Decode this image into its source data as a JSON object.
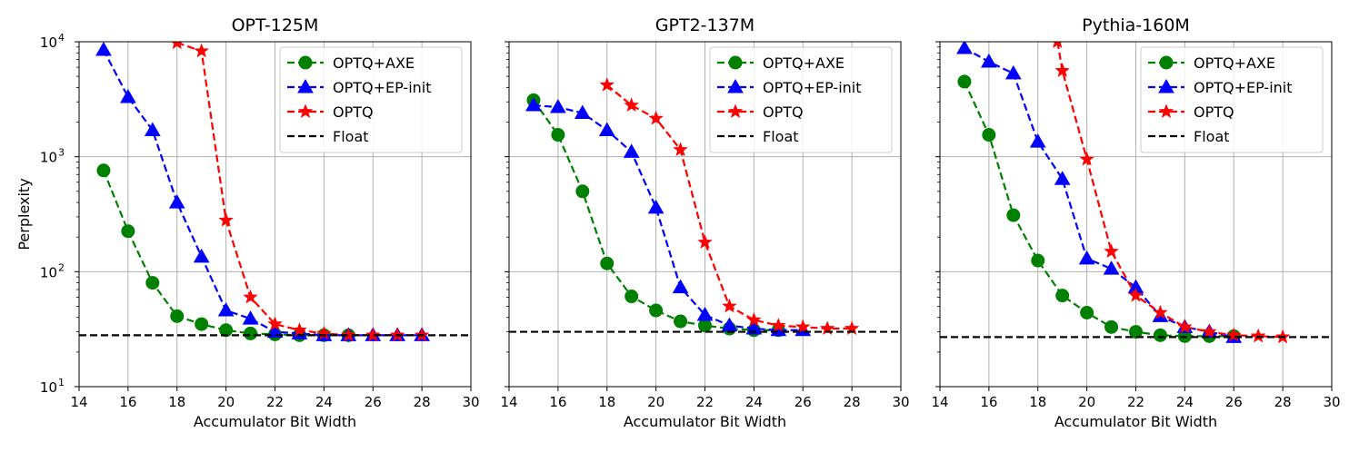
{
  "chart_data": [
    {
      "type": "line",
      "title": "OPT-125M",
      "xlabel": "Accumulator Bit Width",
      "ylabel": "Perplexity",
      "xlim": [
        14,
        30
      ],
      "ylim": [
        10,
        10000
      ],
      "yscale": "log",
      "x_ticks": [
        "14",
        "16",
        "18",
        "20",
        "22",
        "24",
        "26",
        "28",
        "30"
      ],
      "y_ticks": [
        {
          "base": "10",
          "exp": "1"
        },
        {
          "base": "10",
          "exp": "2"
        },
        {
          "base": "10",
          "exp": "3"
        },
        {
          "base": "10",
          "exp": "4"
        }
      ],
      "grid": true,
      "legend_position": "top-right",
      "series": [
        {
          "name": "OPTQ+AXE",
          "color": "#008000",
          "marker": "circle",
          "style": "dashed",
          "x": [
            15,
            16,
            17,
            18,
            19,
            20,
            21,
            22,
            23,
            24,
            25
          ],
          "y": [
            760,
            225,
            80,
            41,
            35,
            31,
            29,
            28.5,
            28,
            28,
            28
          ]
        },
        {
          "name": "OPTQ+EP-init",
          "color": "#0000ff",
          "marker": "triangle",
          "style": "dashed",
          "x": [
            15,
            16,
            17,
            18,
            19,
            20,
            21,
            22,
            23,
            24,
            25,
            26,
            27,
            28
          ],
          "y": [
            8500,
            3300,
            1700,
            400,
            135,
            46,
            39,
            30,
            29,
            28,
            28,
            28,
            28,
            28
          ]
        },
        {
          "name": "OPTQ",
          "color": "#ff0000",
          "marker": "star",
          "style": "dashed",
          "x": [
            18,
            19,
            20,
            21,
            22,
            23,
            24,
            25,
            26,
            27,
            28
          ],
          "y": [
            9800,
            8300,
            280,
            60,
            35,
            31,
            29,
            28,
            28,
            28,
            28
          ]
        },
        {
          "name": "Float",
          "color": "#000000",
          "marker": "none",
          "style": "dashed",
          "hline": 28
        }
      ]
    },
    {
      "type": "line",
      "title": "GPT2-137M",
      "xlabel": "Accumulator Bit Width",
      "ylabel": "",
      "xlim": [
        14,
        30
      ],
      "ylim": [
        10,
        10000
      ],
      "yscale": "log",
      "x_ticks": [
        "14",
        "16",
        "18",
        "20",
        "22",
        "24",
        "26",
        "28",
        "30"
      ],
      "grid": true,
      "legend_position": "top-right",
      "series": [
        {
          "name": "OPTQ+AXE",
          "color": "#008000",
          "marker": "circle",
          "style": "dashed",
          "x": [
            15,
            16,
            17,
            18,
            19,
            20,
            21,
            22,
            23,
            24,
            25
          ],
          "y": [
            3100,
            1550,
            500,
            118,
            61,
            46,
            37,
            34,
            32,
            31,
            31
          ]
        },
        {
          "name": "OPTQ+EP-init",
          "color": "#0000ff",
          "marker": "triangle",
          "style": "dashed",
          "x": [
            15,
            16,
            17,
            18,
            19,
            20,
            21,
            22,
            23,
            24,
            25,
            26
          ],
          "y": [
            2800,
            2700,
            2400,
            1700,
            1100,
            360,
            73,
            42,
            34,
            32,
            31,
            31
          ]
        },
        {
          "name": "OPTQ",
          "color": "#ff0000",
          "marker": "star",
          "style": "dashed",
          "x": [
            18,
            19,
            20,
            21,
            22,
            23,
            24,
            25,
            26,
            27,
            28
          ],
          "y": [
            4200,
            2800,
            2150,
            1150,
            180,
            50,
            38,
            34,
            33,
            32,
            32
          ]
        },
        {
          "name": "Float",
          "color": "#000000",
          "marker": "none",
          "style": "dashed",
          "hline": 30
        }
      ]
    },
    {
      "type": "line",
      "title": "Pythia-160M",
      "xlabel": "Accumulator Bit Width",
      "ylabel": "",
      "xlim": [
        14,
        30
      ],
      "ylim": [
        10,
        10000
      ],
      "yscale": "log",
      "x_ticks": [
        "14",
        "16",
        "18",
        "20",
        "22",
        "24",
        "26",
        "28",
        "30"
      ],
      "grid": true,
      "legend_position": "top-right",
      "series": [
        {
          "name": "OPTQ+AXE",
          "color": "#008000",
          "marker": "circle",
          "style": "dashed",
          "x": [
            15,
            16,
            17,
            18,
            19,
            20,
            21,
            22,
            23,
            24,
            25,
            26
          ],
          "y": [
            4500,
            1550,
            310,
            125,
            62,
            44,
            33,
            30,
            28,
            27.5,
            27.5,
            27.5
          ]
        },
        {
          "name": "OPTQ+EP-init",
          "color": "#0000ff",
          "marker": "triangle",
          "style": "dashed",
          "x": [
            15,
            16,
            17,
            18,
            19,
            20,
            21,
            22,
            23,
            24,
            25,
            26
          ],
          "y": [
            8800,
            6700,
            5300,
            1350,
            640,
            130,
            106,
            73,
            41,
            33,
            30,
            27
          ]
        },
        {
          "name": "OPTQ",
          "color": "#ff0000",
          "marker": "star",
          "style": "dashed",
          "x": [
            18.8,
            19,
            20,
            21,
            22,
            23,
            24,
            25,
            26,
            27,
            28
          ],
          "y": [
            10000,
            5600,
            950,
            150,
            62,
            44,
            33,
            30,
            28,
            27.5,
            27
          ]
        },
        {
          "name": "Float",
          "color": "#000000",
          "marker": "none",
          "style": "dashed",
          "hline": 27
        }
      ]
    }
  ]
}
